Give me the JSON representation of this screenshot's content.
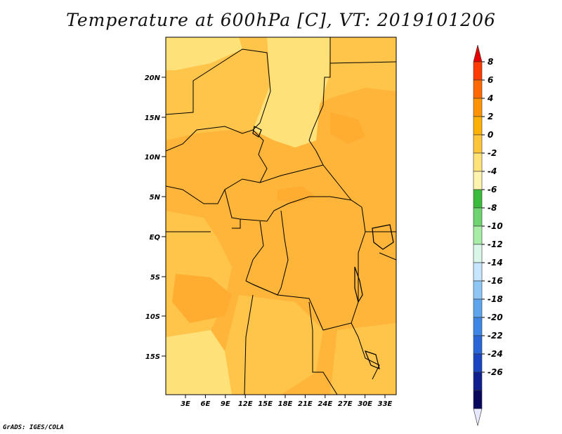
{
  "title": "Temperature at 600hPa [C], VT: 2019101206",
  "credit": "GrADS: IGES/COLA",
  "axes": {
    "lat_labels": [
      "20N",
      "15N",
      "10N",
      "5N",
      "EQ",
      "5S",
      "10S",
      "15S"
    ],
    "lon_labels": [
      "3E",
      "6E",
      "9E",
      "12E",
      "15E",
      "18E",
      "21E",
      "24E",
      "27E",
      "30E",
      "33E"
    ]
  },
  "colorbar": {
    "labels": [
      "8",
      "6",
      "4",
      "2",
      "0",
      "-2",
      "-4",
      "-6",
      "-8",
      "-10",
      "-12",
      "-14",
      "-16",
      "-18",
      "-20",
      "-22",
      "-24",
      "-26"
    ],
    "colors": [
      "#ff3b00",
      "#ff6a00",
      "#ff9400",
      "#ffb000",
      "#ffc53a",
      "#ffe27a",
      "#fff3b0",
      "#3cba3c",
      "#6fd46f",
      "#a7eca7",
      "#d9f7e8",
      "#c6e6ff",
      "#8ec6f6",
      "#5ea5ee",
      "#3d86e6",
      "#2a66d8",
      "#1a44c0",
      "#101f90",
      "#08075e"
    ],
    "top_arrow_color": "#e60000",
    "bottom_arrow_color": "#e8e8ff"
  },
  "map": {
    "colors": {
      "warm": "#ffb43a",
      "mid": "#ffc44a",
      "cool": "#ffe17a",
      "coolest": "#fff0a8"
    }
  }
}
